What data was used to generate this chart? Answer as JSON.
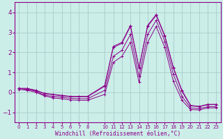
{
  "xlabel": "Windchill (Refroidissement éolien,°C)",
  "x_values": [
    0,
    1,
    2,
    3,
    4,
    5,
    6,
    7,
    8,
    10,
    11,
    12,
    13,
    14,
    15,
    16,
    17,
    18,
    19,
    20,
    21,
    22,
    23
  ],
  "series": [
    [
      0.2,
      0.2,
      0.1,
      -0.05,
      -0.1,
      -0.15,
      -0.2,
      -0.2,
      -0.2,
      0.35,
      2.3,
      2.5,
      3.35,
      1.25,
      3.35,
      3.9,
      2.85,
      1.25,
      0.1,
      -0.65,
      -0.7,
      -0.6,
      -0.6
    ],
    [
      0.2,
      0.15,
      0.1,
      -0.08,
      -0.12,
      -0.18,
      -0.22,
      -0.22,
      -0.22,
      0.3,
      2.25,
      2.45,
      3.3,
      1.2,
      3.3,
      3.85,
      2.8,
      1.2,
      0.05,
      -0.68,
      -0.72,
      -0.62,
      -0.62
    ],
    [
      0.2,
      0.15,
      0.05,
      -0.15,
      -0.2,
      -0.25,
      -0.3,
      -0.32,
      -0.32,
      0.1,
      1.8,
      2.1,
      2.9,
      0.8,
      2.9,
      3.6,
      2.55,
      0.9,
      -0.2,
      -0.78,
      -0.82,
      -0.72,
      -0.72
    ],
    [
      0.15,
      0.1,
      0.0,
      -0.18,
      -0.28,
      -0.32,
      -0.38,
      -0.4,
      -0.4,
      -0.1,
      1.5,
      1.8,
      2.5,
      0.5,
      2.5,
      3.3,
      2.25,
      0.55,
      -0.4,
      -0.86,
      -0.88,
      -0.78,
      -0.78
    ]
  ],
  "line_color": "#8b008b",
  "marker": "+",
  "bg_color": "#cceee8",
  "grid_color": "#aacccc",
  "spine_color": "#8b008b",
  "tick_color": "#8b008b",
  "ylim": [
    -1.5,
    4.5
  ],
  "yticks": [
    -1,
    0,
    1,
    2,
    3,
    4
  ],
  "xlim": [
    -0.5,
    23.5
  ],
  "xtick_positions": [
    0,
    1,
    2,
    3,
    4,
    5,
    6,
    7,
    8,
    10,
    11,
    12,
    13,
    14,
    15,
    16,
    17,
    18,
    19,
    20,
    21,
    22,
    23
  ],
  "xtick_labels": [
    "0",
    "1",
    "2",
    "3",
    "4",
    "5",
    "6",
    "7",
    "8",
    "10",
    "11",
    "12",
    "13",
    "14",
    "15",
    "16",
    "17",
    "18",
    "19",
    "20",
    "21",
    "22",
    "23"
  ]
}
